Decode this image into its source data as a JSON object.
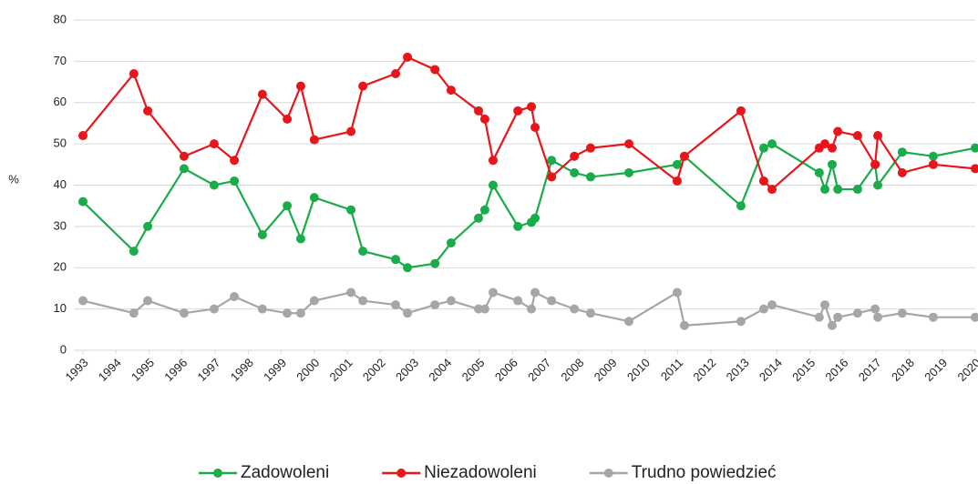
{
  "chart_data": {
    "type": "line",
    "y_label": "%",
    "x": [
      1993.0,
      1994.54,
      1994.96,
      1996.06,
      1996.97,
      1997.58,
      1998.43,
      1999.18,
      1999.59,
      2000.0,
      2001.11,
      2001.47,
      2002.46,
      2002.82,
      2003.65,
      2004.14,
      2004.97,
      2005.16,
      2005.41,
      2006.16,
      2006.57,
      2006.68,
      2007.18,
      2007.87,
      2008.36,
      2009.52,
      2010.98,
      2011.2,
      2012.91,
      2013.6,
      2013.85,
      2015.28,
      2015.45,
      2015.67,
      2015.84,
      2016.44,
      2016.97,
      2017.05,
      2017.79,
      2018.73,
      2020.0
    ],
    "series": [
      {
        "name": "Zadowoleni",
        "color": "#1aab4a",
        "values": [
          36,
          24,
          30,
          44,
          40,
          41,
          28,
          35,
          27,
          37,
          34,
          24,
          22,
          20,
          21,
          26,
          32,
          34,
          40,
          30,
          31,
          32,
          46,
          43,
          42,
          43,
          45,
          47,
          35,
          49,
          50,
          43,
          39,
          45,
          39,
          39,
          45,
          40,
          48,
          47,
          49
        ]
      },
      {
        "name": "Niezadowoleni",
        "color": "#e8151b",
        "values": [
          52,
          67,
          58,
          47,
          50,
          46,
          62,
          56,
          64,
          51,
          53,
          64,
          67,
          71,
          68,
          63,
          58,
          56,
          46,
          58,
          59,
          54,
          42,
          47,
          49,
          50,
          41,
          47,
          58,
          41,
          39,
          49,
          50,
          49,
          53,
          52,
          45,
          52,
          43,
          45,
          44
        ]
      },
      {
        "name": "Trudno powiedzieć",
        "color": "#a6a6a6",
        "values": [
          12,
          9,
          12,
          9,
          10,
          13,
          10,
          9,
          9,
          12,
          14,
          12,
          11,
          9,
          11,
          12,
          10,
          10,
          14,
          12,
          10,
          14,
          12,
          10,
          9,
          7,
          14,
          6,
          7,
          10,
          11,
          8,
          11,
          6,
          8,
          9,
          10,
          8,
          9,
          8,
          8
        ]
      }
    ],
    "xlim": [
      1993,
      2020
    ],
    "xticks": [
      1993,
      1994,
      1995,
      1996,
      1997,
      1998,
      1999,
      2000,
      2001,
      2002,
      2003,
      2004,
      2005,
      2006,
      2007,
      2008,
      2009,
      2010,
      2011,
      2012,
      2013,
      2014,
      2015,
      2016,
      2017,
      2018,
      2019,
      2020
    ],
    "ylim": [
      0,
      80
    ],
    "yticks": [
      0,
      10,
      20,
      30,
      40,
      50,
      60,
      70,
      80
    ],
    "grid": true,
    "legend": "bottom"
  }
}
